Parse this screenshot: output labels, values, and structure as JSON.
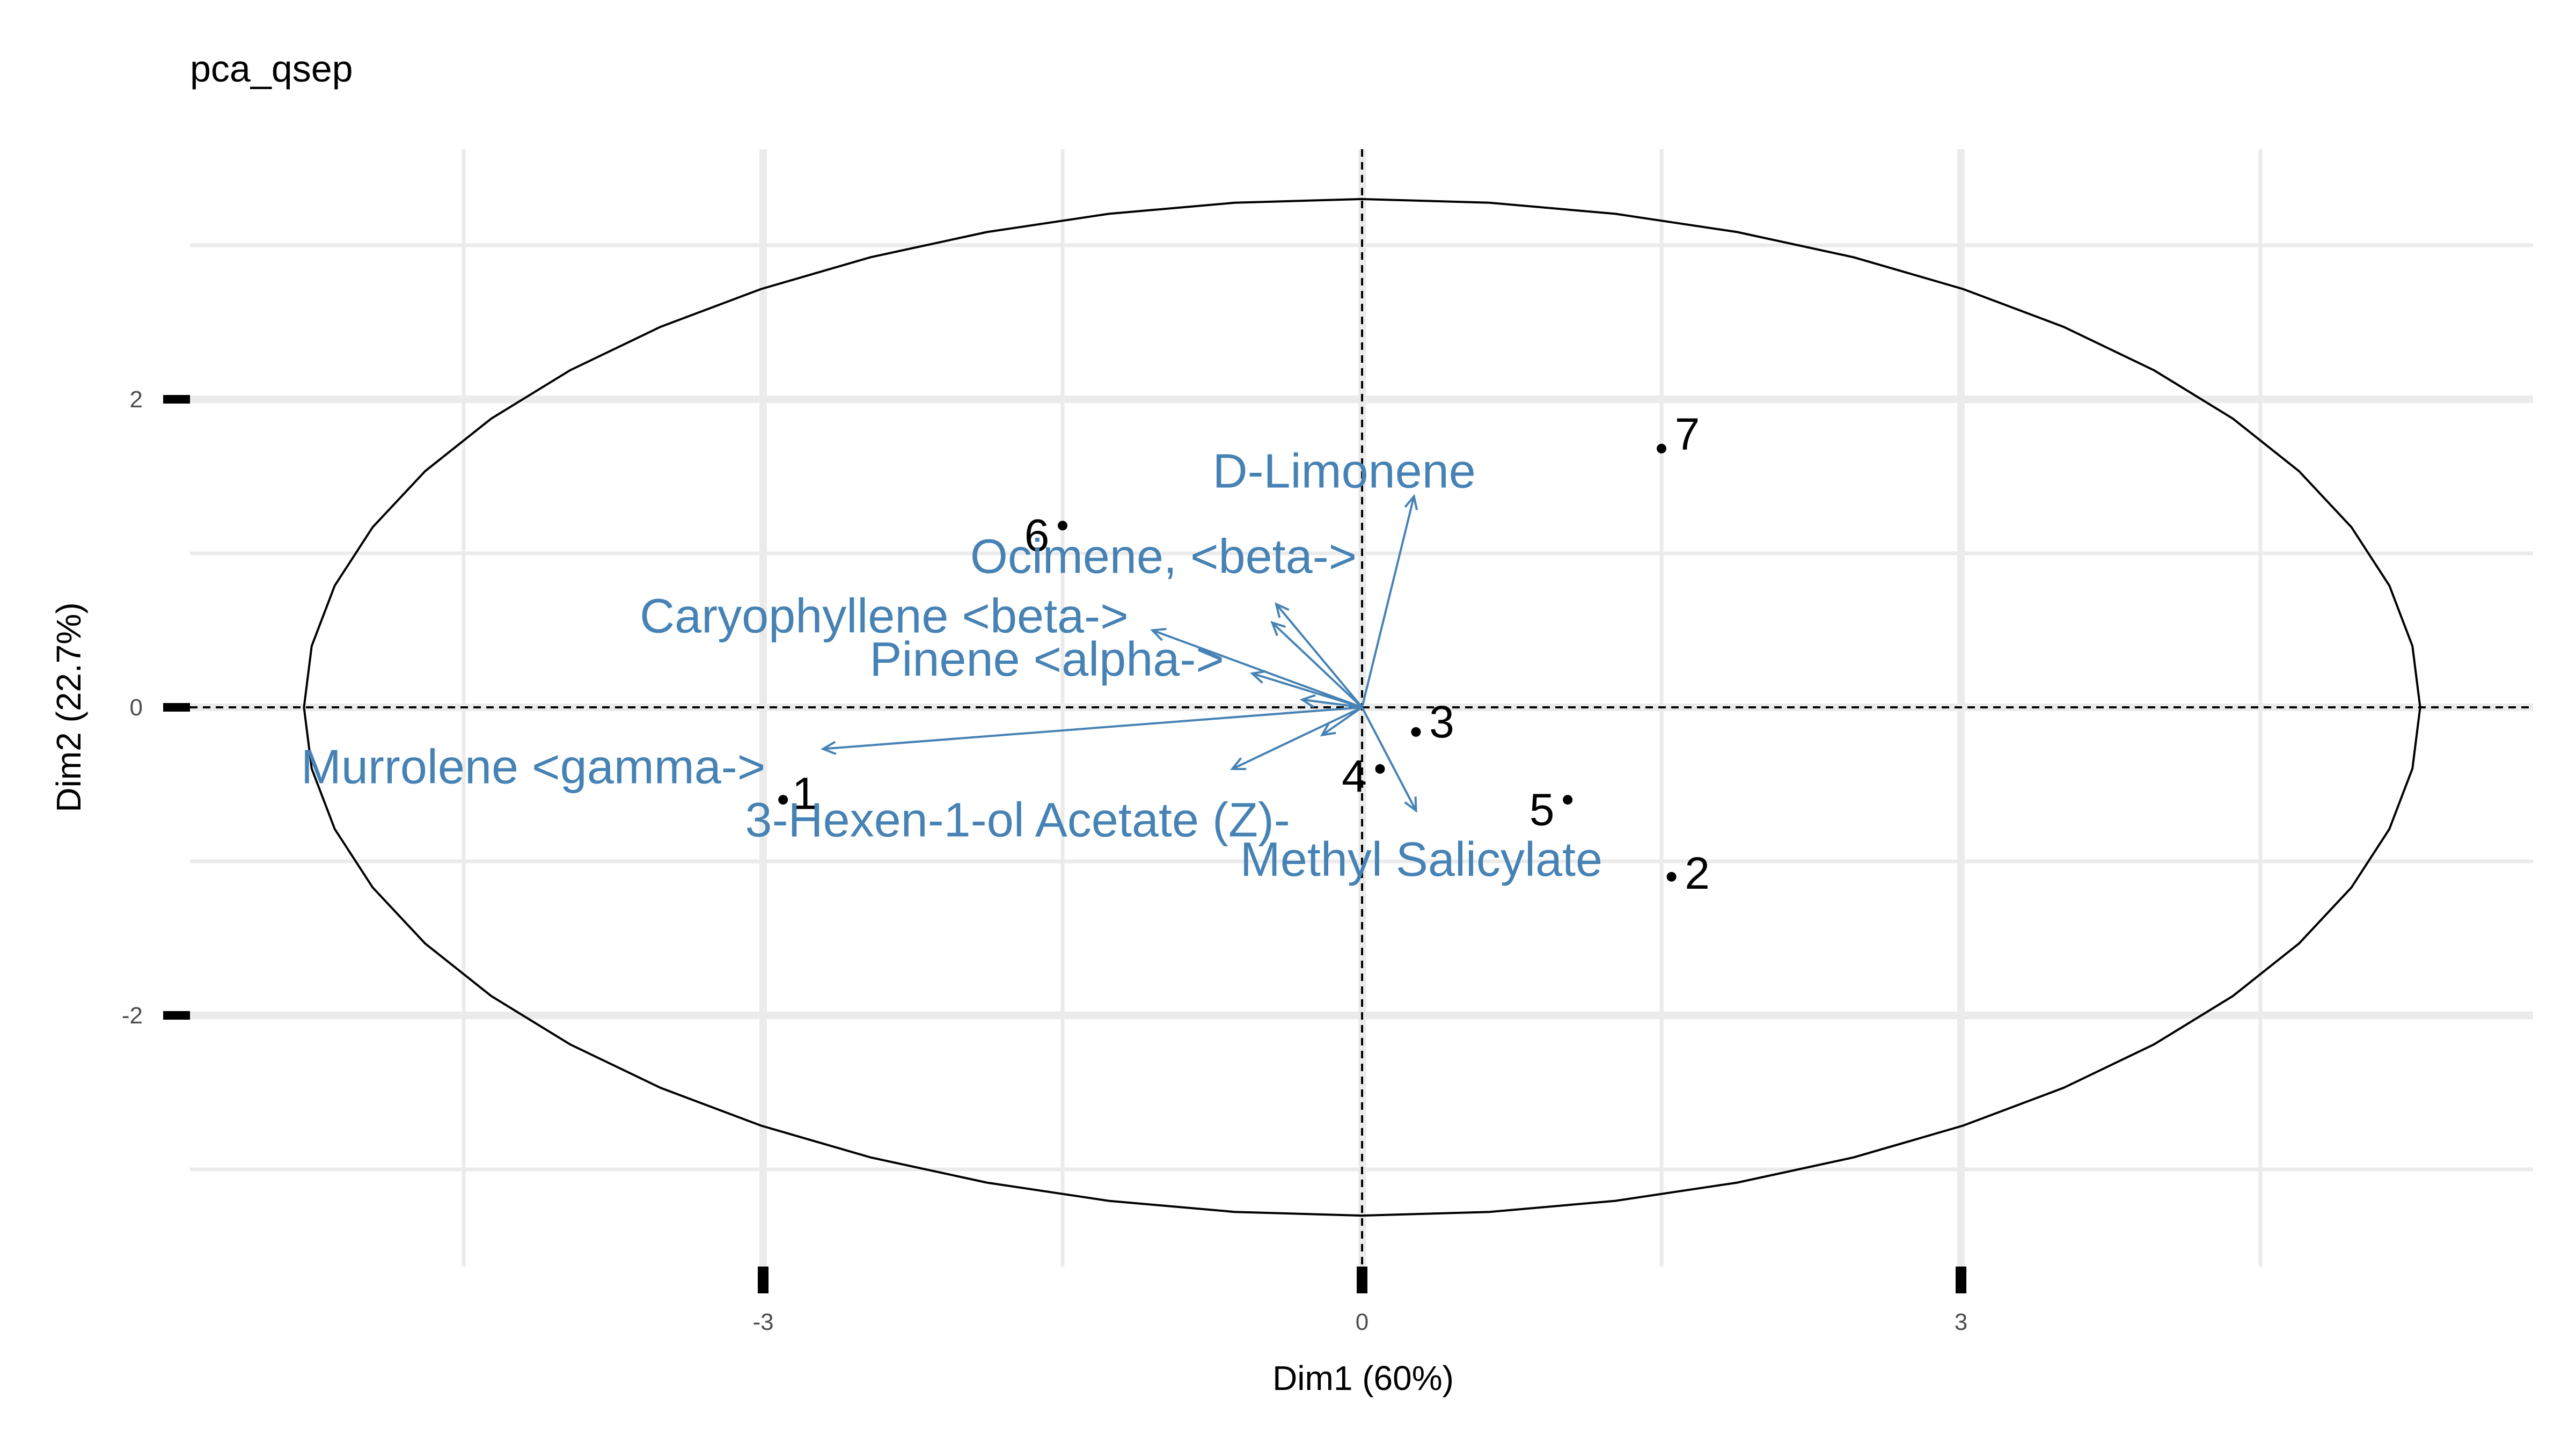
{
  "chart_data": {
    "type": "scatter",
    "title": "pca_qsep",
    "xlabel": "Dim1 (60%)",
    "ylabel": "Dim2 (22.7%)",
    "xlim": [
      -5.9,
      5.9
    ],
    "ylim": [
      -3.6,
      3.6
    ],
    "x_ticks": [
      -3,
      0,
      3
    ],
    "y_ticks": [
      -2,
      0,
      2
    ],
    "x_tick_labels": [
      "-3",
      "0",
      "3"
    ],
    "y_tick_labels": [
      "-2",
      "0",
      "2"
    ],
    "grid": true,
    "reference_lines": {
      "x": 0,
      "y": 0,
      "style": "dashed"
    },
    "ellipse": {
      "center": [
        0,
        0
      ],
      "radius_x": 5.3,
      "radius_y": 3.3
    },
    "points": [
      {
        "label": "1",
        "x": -2.9,
        "y": -0.6
      },
      {
        "label": "2",
        "x": 1.55,
        "y": -1.1
      },
      {
        "label": "3",
        "x": 0.27,
        "y": -0.16
      },
      {
        "label": "4",
        "x": 0.09,
        "y": -0.4
      },
      {
        "label": "5",
        "x": 1.03,
        "y": -0.6
      },
      {
        "label": "6",
        "x": -1.5,
        "y": 1.18
      },
      {
        "label": "7",
        "x": 1.5,
        "y": 1.68
      }
    ],
    "loadings": [
      {
        "label": "Caryophyllene <beta->",
        "x": -1.05,
        "y": 0.5
      },
      {
        "label": "Murrolene <gamma->",
        "x": -2.7,
        "y": -0.27
      },
      {
        "label": "3-Hexen-1-ol Acetate (Z)-",
        "x": -0.65,
        "y": -0.4
      },
      {
        "label": "D-Limonene",
        "x": 0.26,
        "y": 1.37
      },
      {
        "label": "Ocimene, <beta->",
        "x": -0.43,
        "y": 0.67
      },
      {
        "label": "Pinene <alpha->",
        "x": -0.45,
        "y": 0.55
      },
      {
        "label": "Methyl Salicylate",
        "x": 0.27,
        "y": -0.67
      }
    ],
    "unlabeled_loadings": [
      {
        "x": -0.55,
        "y": 0.22
      },
      {
        "x": -0.2,
        "y": -0.18
      },
      {
        "x": -0.3,
        "y": 0.05
      }
    ],
    "colors": {
      "loading": "#4682B4",
      "point": "#000000",
      "grid": "#EBEBEB"
    }
  }
}
